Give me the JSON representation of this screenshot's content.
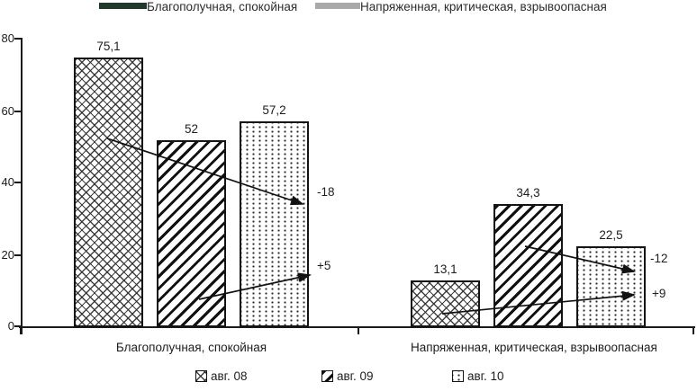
{
  "top_legend": {
    "items": [
      {
        "label": "Благополучная, спокойная",
        "color": "#20392b"
      },
      {
        "label": "Напряженная, критическая, взрывоопасная",
        "color": "#a9a9a9"
      }
    ]
  },
  "chart_data": {
    "type": "bar",
    "title": "",
    "categories": [
      "Благополучная, спокойная",
      "Напряженная, критическая, взрывоопасная"
    ],
    "series": [
      {
        "name": "авг. 08",
        "pattern": "crosshatch",
        "values": [
          75.1,
          13.1
        ],
        "labels": [
          "75,1",
          "13,1"
        ]
      },
      {
        "name": "авг. 09",
        "pattern": "diagonal-stripes",
        "values": [
          52,
          34.3
        ],
        "labels": [
          "52",
          "34,3"
        ]
      },
      {
        "name": "авг. 10",
        "pattern": "dots",
        "values": [
          57.2,
          22.5
        ],
        "labels": [
          "57,2",
          "22,5"
        ]
      }
    ],
    "y_axis": {
      "range": [
        0,
        80
      ],
      "ticks": [
        0,
        20,
        40,
        60,
        80
      ],
      "tick_labels_top_to_bottom": [
        "80",
        "60",
        "40",
        "20",
        "0"
      ],
      "grid": false
    },
    "annotations": [
      {
        "text": "-18",
        "category_index": 0
      },
      {
        "text": "+5",
        "category_index": 0
      },
      {
        "text": "-12",
        "category_index": 1
      },
      {
        "text": "+9",
        "category_index": 1
      }
    ],
    "legend_position": "bottom",
    "ink_color": "#1a1a1a"
  }
}
